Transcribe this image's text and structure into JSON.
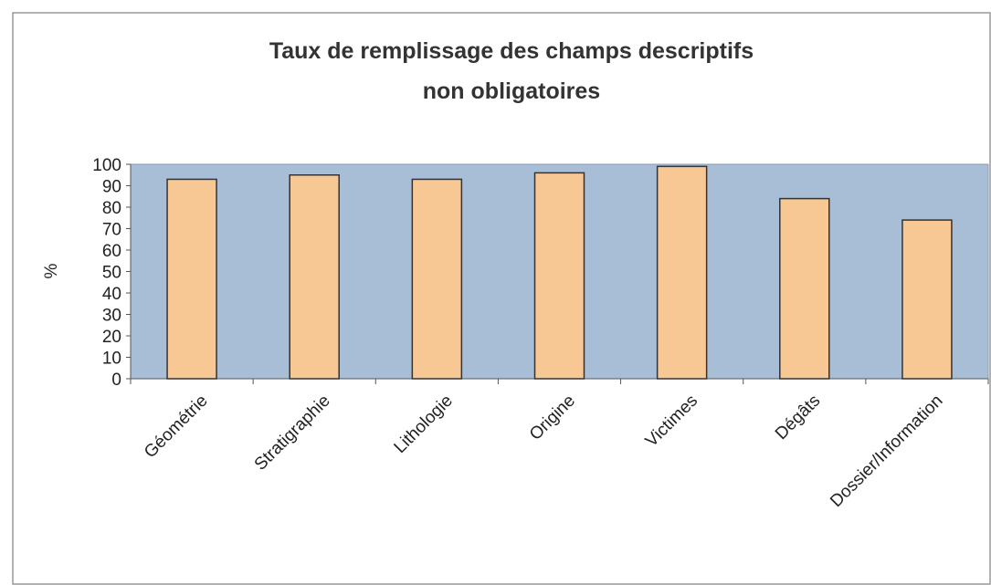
{
  "chart_data": {
    "type": "bar",
    "title": [
      "Taux de remplissage des champs descriptifs",
      "non obligatoires"
    ],
    "y_label": "%",
    "categories": [
      "Géométrie",
      "Stratigraphie",
      "Lithologie",
      "Origine",
      "Victimes",
      "Dégâts",
      "Dossier/Information"
    ],
    "values": [
      93,
      95,
      93,
      96,
      99,
      84,
      74
    ],
    "color": "#f8c894",
    "ylim": [
      0,
      100
    ],
    "yticks": [
      0,
      10,
      20,
      30,
      40,
      50,
      60,
      70,
      80,
      90,
      100
    ],
    "grid": false
  }
}
